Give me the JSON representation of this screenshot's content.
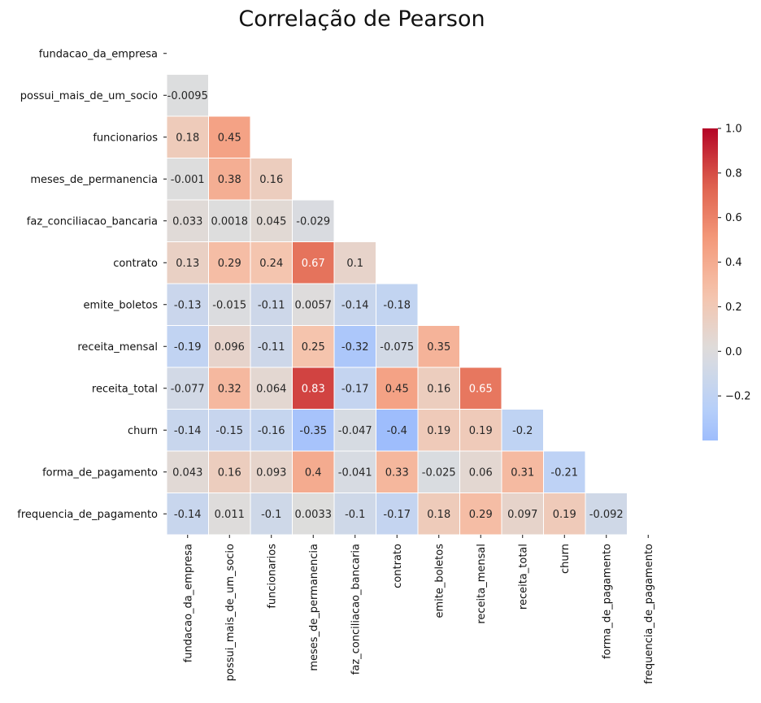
{
  "chart_data": {
    "type": "heatmap",
    "title": "Correlação de Pearson",
    "labels": [
      "fundacao_da_empresa",
      "possui_mais_de_um_socio",
      "funcionarios",
      "meses_de_permanencia",
      "faz_conciliacao_bancaria",
      "contrato",
      "emite_boletos",
      "receita_mensal",
      "receita_total",
      "churn",
      "forma_de_pagamento",
      "frequencia_de_pagamento"
    ],
    "values": [
      [
        null,
        null,
        null,
        null,
        null,
        null,
        null,
        null,
        null,
        null,
        null,
        null
      ],
      [
        -0.0095,
        null,
        null,
        null,
        null,
        null,
        null,
        null,
        null,
        null,
        null,
        null
      ],
      [
        0.18,
        0.45,
        null,
        null,
        null,
        null,
        null,
        null,
        null,
        null,
        null,
        null
      ],
      [
        -0.001,
        0.38,
        0.16,
        null,
        null,
        null,
        null,
        null,
        null,
        null,
        null,
        null
      ],
      [
        0.033,
        0.0018,
        0.045,
        -0.029,
        null,
        null,
        null,
        null,
        null,
        null,
        null,
        null
      ],
      [
        0.13,
        0.29,
        0.24,
        0.67,
        0.1,
        null,
        null,
        null,
        null,
        null,
        null,
        null
      ],
      [
        -0.13,
        -0.015,
        -0.11,
        0.0057,
        -0.14,
        -0.18,
        null,
        null,
        null,
        null,
        null,
        null
      ],
      [
        -0.19,
        0.096,
        -0.11,
        0.25,
        -0.32,
        -0.075,
        0.35,
        null,
        null,
        null,
        null,
        null
      ],
      [
        -0.077,
        0.32,
        0.064,
        0.83,
        -0.17,
        0.45,
        0.16,
        0.65,
        null,
        null,
        null,
        null
      ],
      [
        -0.14,
        -0.15,
        -0.16,
        -0.35,
        -0.047,
        -0.4,
        0.19,
        0.19,
        -0.2,
        null,
        null,
        null
      ],
      [
        0.043,
        0.16,
        0.093,
        0.4,
        -0.041,
        0.33,
        -0.025,
        0.06,
        0.31,
        -0.21,
        null,
        null
      ],
      [
        -0.14,
        0.011,
        -0.1,
        0.0033,
        -0.1,
        -0.17,
        0.18,
        0.29,
        0.097,
        0.19,
        -0.092,
        null
      ]
    ],
    "cell_labels": [
      [
        null,
        null,
        null,
        null,
        null,
        null,
        null,
        null,
        null,
        null,
        null,
        null
      ],
      [
        "-0.0095",
        null,
        null,
        null,
        null,
        null,
        null,
        null,
        null,
        null,
        null,
        null
      ],
      [
        "0.18",
        "0.45",
        null,
        null,
        null,
        null,
        null,
        null,
        null,
        null,
        null,
        null
      ],
      [
        "-0.001",
        "0.38",
        "0.16",
        null,
        null,
        null,
        null,
        null,
        null,
        null,
        null,
        null
      ],
      [
        "0.033",
        "0.0018",
        "0.045",
        "-0.029",
        null,
        null,
        null,
        null,
        null,
        null,
        null,
        null
      ],
      [
        "0.13",
        "0.29",
        "0.24",
        "0.67",
        "0.1",
        null,
        null,
        null,
        null,
        null,
        null,
        null
      ],
      [
        "-0.13",
        "-0.015",
        "-0.11",
        "0.0057",
        "-0.14",
        "-0.18",
        null,
        null,
        null,
        null,
        null,
        null
      ],
      [
        "-0.19",
        "0.096",
        "-0.11",
        "0.25",
        "-0.32",
        "-0.075",
        "0.35",
        null,
        null,
        null,
        null,
        null
      ],
      [
        "-0.077",
        "0.32",
        "0.064",
        "0.83",
        "-0.17",
        "0.45",
        "0.16",
        "0.65",
        null,
        null,
        null,
        null
      ],
      [
        "-0.14",
        "-0.15",
        "-0.16",
        "-0.35",
        "-0.047",
        "-0.4",
        "0.19",
        "0.19",
        "-0.2",
        null,
        null,
        null
      ],
      [
        "0.043",
        "0.16",
        "0.093",
        "0.4",
        "-0.041",
        "0.33",
        "-0.025",
        "0.06",
        "0.31",
        "-0.21",
        null,
        null
      ],
      [
        "-0.14",
        "0.011",
        "-0.1",
        "0.0033",
        "-0.1",
        "-0.17",
        "0.18",
        "0.29",
        "0.097",
        "0.19",
        "-0.092",
        null
      ]
    ],
    "mask": "upper-triangle-including-diagonal",
    "colormap": "coolwarm",
    "vmin": -1,
    "vmax": 1,
    "colorbar": {
      "range": [
        -0.4,
        1.0
      ],
      "ticks": [
        1.0,
        0.8,
        0.6,
        0.4,
        0.2,
        0.0,
        -0.2
      ],
      "tick_labels": [
        "1.0",
        "0.8",
        "0.6",
        "0.4",
        "0.2",
        "0.0",
        "−0.2"
      ],
      "placement": "right"
    },
    "grid": false,
    "cell_border_color": "#ffffff"
  }
}
